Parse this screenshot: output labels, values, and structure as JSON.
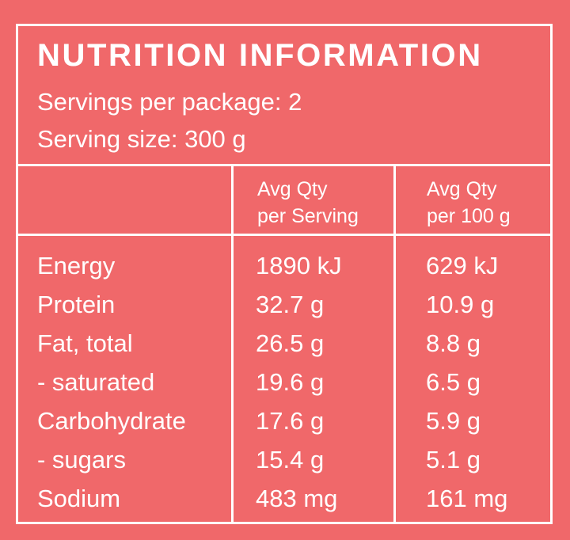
{
  "panel": {
    "title": "NUTRITION INFORMATION",
    "servings_per_package": "Servings per package: 2",
    "serving_size": "Serving size: 300 g"
  },
  "columns": {
    "serving": [
      "Avg Qty",
      "per Serving"
    ],
    "per100": [
      "Avg Qty",
      "per 100 g"
    ]
  },
  "rows": [
    {
      "name": "Energy",
      "serving": "1890 kJ",
      "per100": "629 kJ"
    },
    {
      "name": "Protein",
      "serving": "32.7 g",
      "per100": "10.9 g"
    },
    {
      "name": "Fat, total",
      "serving": "26.5 g",
      "per100": "8.8 g"
    },
    {
      "name": "- saturated",
      "serving": "19.6 g",
      "per100": "6.5 g"
    },
    {
      "name": "Carbohydrate",
      "serving": "17.6 g",
      "per100": "5.9 g"
    },
    {
      "name": "- sugars",
      "serving": "15.4 g",
      "per100": "5.1 g"
    },
    {
      "name": "Sodium",
      "serving": "483 mg",
      "per100": "161 mg"
    }
  ],
  "colors": {
    "background": "#f0686a",
    "text": "#ffffff",
    "border": "#ffffff"
  }
}
